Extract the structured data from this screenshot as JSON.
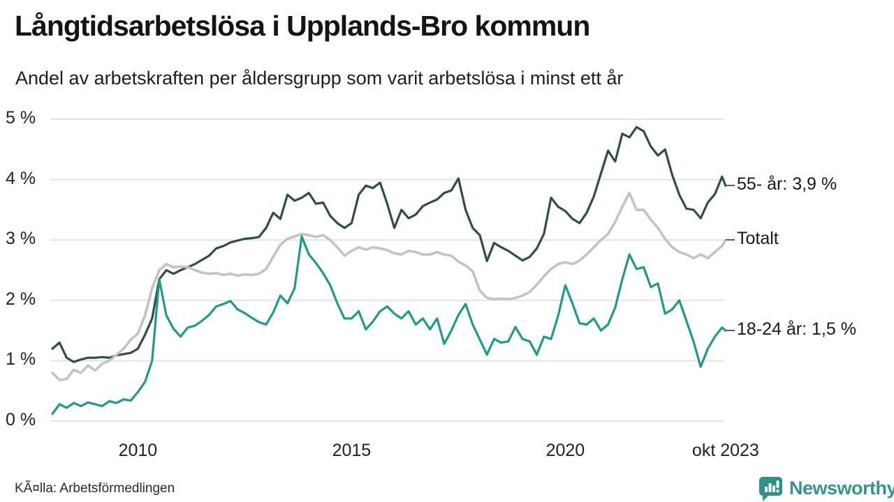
{
  "header": {
    "title": "Långtidsarbetslösa i Upplands-Bro kommun",
    "subtitle": "Andel av arbetskraften per åldersgrupp som varit arbetslösa i minst ett år"
  },
  "footer": {
    "source": "KÃ¤lla: Arbetsförmedlingen",
    "brand": "Newsworthy",
    "brand_color": "#2f9187",
    "brand_text_color": "#38948b"
  },
  "chart_data": {
    "type": "line",
    "title": "Långtidsarbetslösa i Upplands-Bro kommun",
    "subtitle": "Andel av arbetskraften per åldersgrupp som varit arbetslösa i minst ett år",
    "unit": "%",
    "grid": true,
    "legend_position": "right-end-labels",
    "x_axis": {
      "start_year": 2008,
      "points_per_year": 6,
      "final_point_year": 2023.75,
      "ticks": [
        {
          "label": "2010",
          "year": 2010
        },
        {
          "label": "2015",
          "year": 2015
        },
        {
          "label": "2020",
          "year": 2020
        },
        {
          "label": "okt 2023",
          "year": 2023.75
        }
      ]
    },
    "y_axis": {
      "min": 0,
      "max": 5,
      "gridline_color": "#e4e3e9",
      "ticks": [
        {
          "label": "5 %",
          "value": 5
        },
        {
          "label": "4 %",
          "value": 4
        },
        {
          "label": "3 %",
          "value": 3
        },
        {
          "label": "2 %",
          "value": 2
        },
        {
          "label": "1 %",
          "value": 1
        },
        {
          "label": "0 %",
          "value": 0
        }
      ]
    },
    "series": [
      {
        "name": "55- år",
        "color": "#2d4f45",
        "end_label": "55- år: 3,9 %",
        "end_value": 3.9,
        "values": [
          1.2,
          1.3,
          1.05,
          0.98,
          1.02,
          1.05,
          1.05,
          1.06,
          1.05,
          1.09,
          1.11,
          1.13,
          1.2,
          1.43,
          1.7,
          2.35,
          2.5,
          2.44,
          2.5,
          2.55,
          2.6,
          2.67,
          2.74,
          2.86,
          2.9,
          2.96,
          2.99,
          3.02,
          3.03,
          3.05,
          3.2,
          3.45,
          3.35,
          3.75,
          3.65,
          3.7,
          3.78,
          3.6,
          3.62,
          3.4,
          3.28,
          3.2,
          3.28,
          3.75,
          3.9,
          3.86,
          3.95,
          3.6,
          3.2,
          3.5,
          3.36,
          3.42,
          3.56,
          3.62,
          3.67,
          3.78,
          3.82,
          4.02,
          3.5,
          3.2,
          3.08,
          2.65,
          2.95,
          2.88,
          2.82,
          2.74,
          2.66,
          2.72,
          2.86,
          3.1,
          3.7,
          3.55,
          3.48,
          3.35,
          3.28,
          3.45,
          3.72,
          4.1,
          4.48,
          4.3,
          4.76,
          4.7,
          4.87,
          4.8,
          4.55,
          4.4,
          4.5,
          4.08,
          3.75,
          3.52,
          3.5,
          3.36,
          3.62,
          3.76,
          4.05,
          3.9
        ]
      },
      {
        "name": "Totalt",
        "color": "#c3c1ce",
        "end_label": "Totalt",
        "end_value": 3.0,
        "values": [
          0.8,
          0.68,
          0.7,
          0.85,
          0.8,
          0.92,
          0.84,
          0.95,
          1.0,
          1.1,
          1.2,
          1.35,
          1.45,
          1.75,
          2.2,
          2.5,
          2.6,
          2.55,
          2.56,
          2.55,
          2.5,
          2.46,
          2.44,
          2.45,
          2.42,
          2.44,
          2.41,
          2.43,
          2.42,
          2.44,
          2.52,
          2.72,
          2.92,
          3.02,
          3.06,
          3.1,
          3.08,
          3.05,
          3.08,
          3.0,
          2.88,
          2.74,
          2.82,
          2.88,
          2.84,
          2.88,
          2.86,
          2.83,
          2.78,
          2.76,
          2.82,
          2.8,
          2.76,
          2.76,
          2.8,
          2.76,
          2.74,
          2.64,
          2.58,
          2.48,
          2.16,
          2.04,
          2.02,
          2.03,
          2.02,
          2.04,
          2.08,
          2.14,
          2.26,
          2.4,
          2.52,
          2.6,
          2.63,
          2.6,
          2.66,
          2.76,
          2.88,
          3.0,
          3.1,
          3.3,
          3.55,
          3.78,
          3.5,
          3.5,
          3.34,
          3.2,
          3.02,
          2.88,
          2.8,
          2.76,
          2.7,
          2.76,
          2.7,
          2.8,
          2.9,
          3.0
        ]
      },
      {
        "name": "18-24 år",
        "color": "#1d9a88",
        "end_label": "18-24 år: 1,5 %",
        "end_value": 1.5,
        "values": [
          0.12,
          0.28,
          0.22,
          0.3,
          0.25,
          0.31,
          0.28,
          0.25,
          0.33,
          0.3,
          0.36,
          0.34,
          0.48,
          0.65,
          1.0,
          2.35,
          1.75,
          1.53,
          1.4,
          1.55,
          1.58,
          1.66,
          1.76,
          1.9,
          1.94,
          1.99,
          1.85,
          1.79,
          1.71,
          1.64,
          1.6,
          1.8,
          2.08,
          1.95,
          2.2,
          3.06,
          2.76,
          2.62,
          2.45,
          2.25,
          1.95,
          1.7,
          1.7,
          1.82,
          1.52,
          1.65,
          1.82,
          1.9,
          1.78,
          1.7,
          1.82,
          1.6,
          1.7,
          1.52,
          1.7,
          1.28,
          1.5,
          1.76,
          1.94,
          1.6,
          1.35,
          1.1,
          1.36,
          1.3,
          1.32,
          1.56,
          1.36,
          1.32,
          1.1,
          1.4,
          1.36,
          1.75,
          2.25,
          1.95,
          1.62,
          1.6,
          1.7,
          1.5,
          1.6,
          1.88,
          2.35,
          2.76,
          2.52,
          2.55,
          2.22,
          2.28,
          1.78,
          1.85,
          2.0,
          1.66,
          1.32,
          0.9,
          1.2,
          1.4,
          1.55,
          1.5
        ]
      }
    ]
  }
}
